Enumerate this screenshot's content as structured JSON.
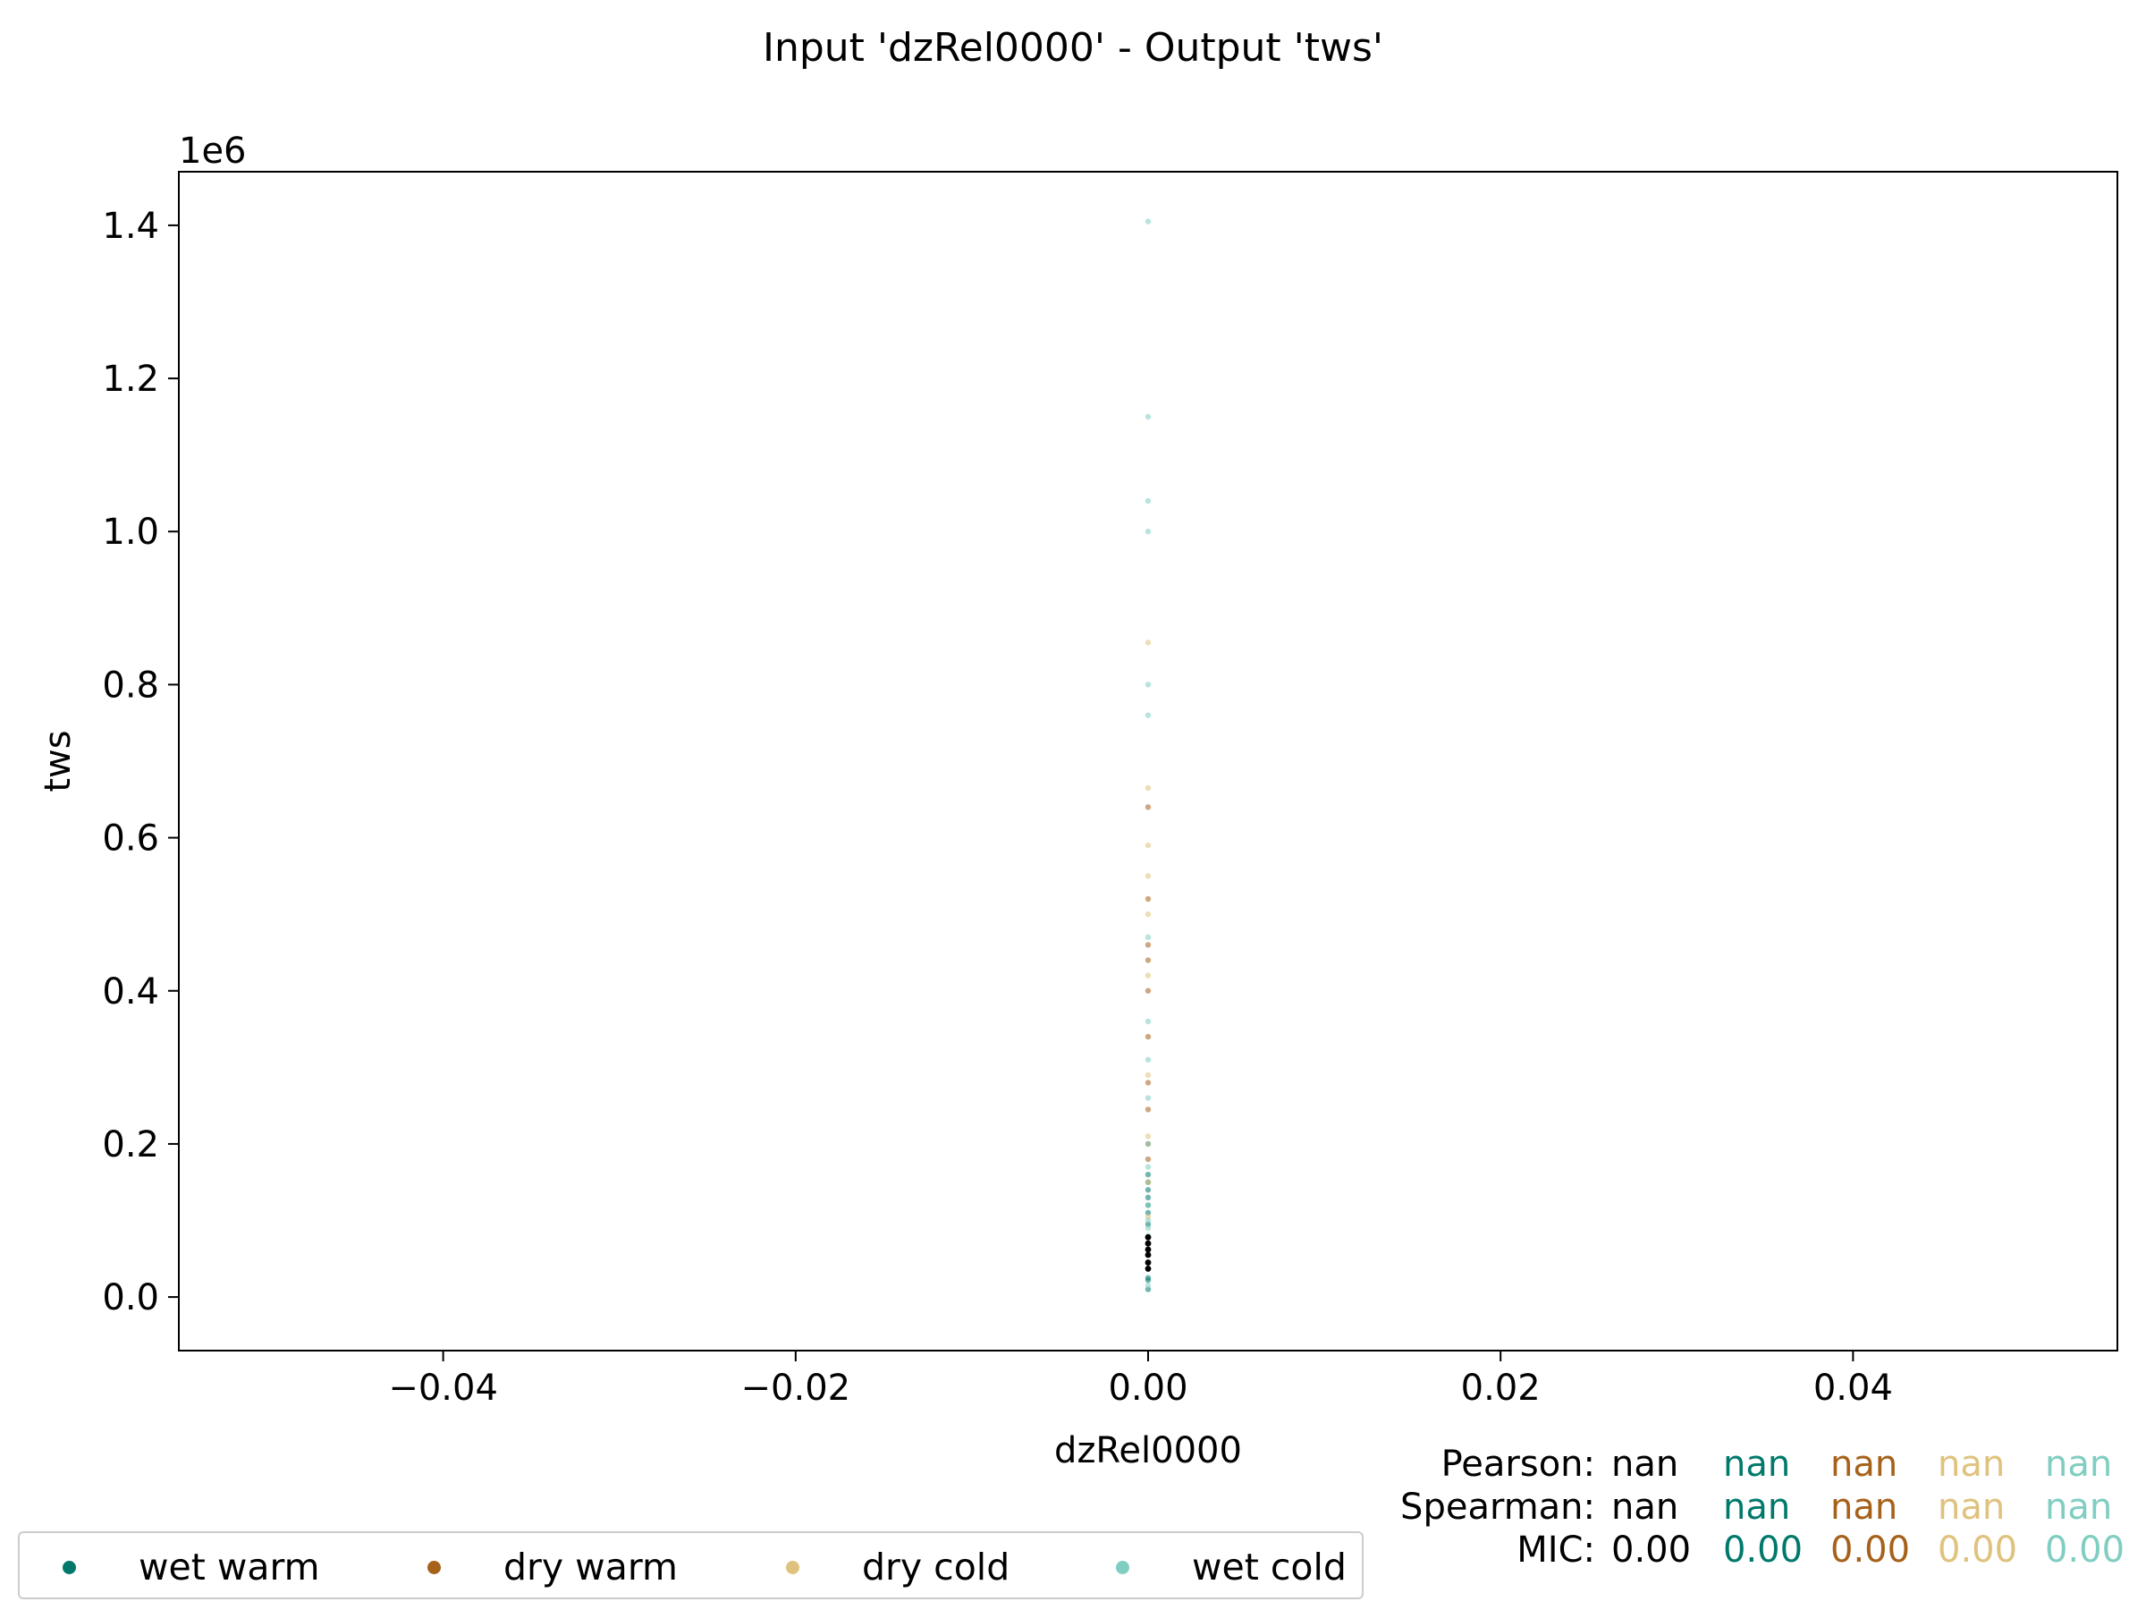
{
  "figure": {
    "title": "Input 'dzRel0000' - Output 'tws'"
  },
  "chart_data": {
    "type": "scatter",
    "title": "Input 'dzRel0000' - Output 'tws'",
    "xlabel": "dzRel0000",
    "ylabel": "tws",
    "y_offset_text": "1e6",
    "xlim": [
      -0.055,
      0.055
    ],
    "ylim": [
      -70000,
      1470000
    ],
    "x_ticks": [
      -0.04,
      -0.02,
      0.0,
      0.02,
      0.04
    ],
    "x_tick_labels": [
      "−0.04",
      "−0.02",
      "0.00",
      "0.02",
      "0.04"
    ],
    "y_ticks": [
      0,
      200000,
      400000,
      600000,
      800000,
      1000000,
      1200000,
      1400000
    ],
    "y_tick_labels": [
      "0.0",
      "0.2",
      "0.4",
      "0.6",
      "0.8",
      "1.0",
      "1.2",
      "1.4"
    ],
    "grid": false,
    "legend_position": "bottom-left, below the plot",
    "series": [
      {
        "name": "wet warm",
        "color": "#00796b",
        "x": [
          0,
          0,
          0,
          0,
          0,
          0,
          0,
          0,
          0,
          0
        ],
        "y": [
          10000,
          22000,
          25000,
          95000,
          110000,
          120000,
          130000,
          140000,
          150000,
          160000
        ]
      },
      {
        "name": "dry warm",
        "color": "#a6611a",
        "x": [
          0,
          0,
          0,
          0,
          0,
          0,
          0,
          0,
          0,
          0
        ],
        "y": [
          180000,
          200000,
          245000,
          280000,
          340000,
          400000,
          440000,
          460000,
          520000,
          640000
        ]
      },
      {
        "name": "dry cold",
        "color": "#dfc27d",
        "x": [
          0,
          0,
          0,
          0,
          0,
          0,
          0,
          0,
          0,
          0
        ],
        "y": [
          105000,
          150000,
          210000,
          290000,
          420000,
          500000,
          550000,
          590000,
          665000,
          855000
        ]
      },
      {
        "name": "wet cold",
        "color": "#80cdc1",
        "x": [
          0,
          0,
          0,
          0,
          0,
          0,
          0,
          0,
          0,
          0,
          0,
          0,
          0,
          0,
          0,
          0,
          0
        ],
        "y": [
          15000,
          80000,
          90000,
          100000,
          120000,
          170000,
          200000,
          260000,
          310000,
          360000,
          470000,
          760000,
          800000,
          1000000,
          1040000,
          1150000,
          1405000
        ]
      }
    ],
    "highlight_series": {
      "color": "#000000",
      "x": [
        0,
        0,
        0,
        0,
        0,
        0
      ],
      "y": [
        37000,
        45000,
        55000,
        62000,
        70000,
        78000
      ]
    },
    "stats": {
      "rows": [
        {
          "label": "Pearson:",
          "values": [
            {
              "text": "nan",
              "color": "#000000"
            },
            {
              "text": "nan",
              "color": "#00796b"
            },
            {
              "text": "nan",
              "color": "#a6611a"
            },
            {
              "text": "nan",
              "color": "#dfc27d"
            },
            {
              "text": "nan",
              "color": "#80cdc1"
            }
          ]
        },
        {
          "label": "Spearman:",
          "values": [
            {
              "text": "nan",
              "color": "#000000"
            },
            {
              "text": "nan",
              "color": "#00796b"
            },
            {
              "text": "nan",
              "color": "#a6611a"
            },
            {
              "text": "nan",
              "color": "#dfc27d"
            },
            {
              "text": "nan",
              "color": "#80cdc1"
            }
          ]
        },
        {
          "label": "MIC:",
          "values": [
            {
              "text": "0.00",
              "color": "#000000"
            },
            {
              "text": "0.00",
              "color": "#00796b"
            },
            {
              "text": "0.00",
              "color": "#a6611a"
            },
            {
              "text": "0.00",
              "color": "#dfc27d"
            },
            {
              "text": "0.00",
              "color": "#80cdc1"
            }
          ]
        }
      ]
    }
  }
}
